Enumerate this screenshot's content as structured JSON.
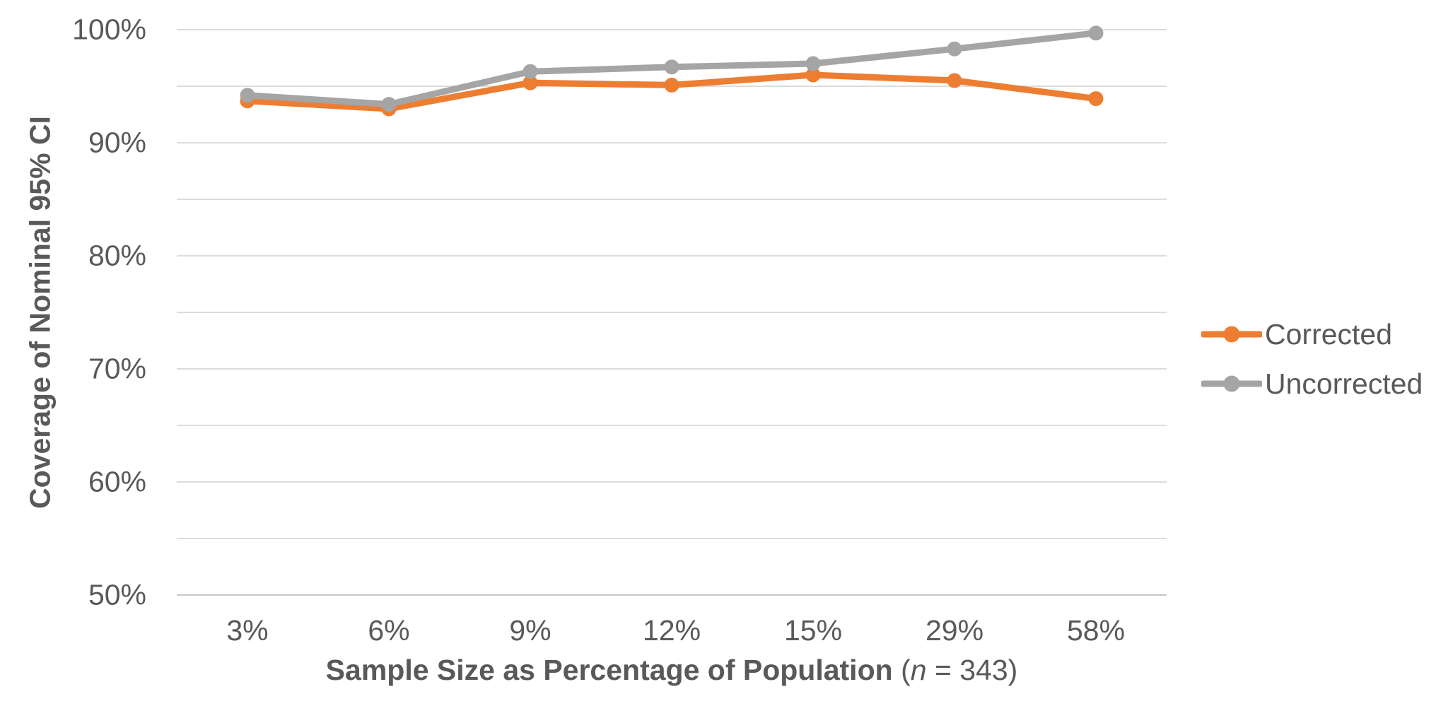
{
  "chart_data": {
    "type": "line",
    "title": "",
    "categories": [
      "3%",
      "6%",
      "9%",
      "12%",
      "15%",
      "29%",
      "58%"
    ],
    "series": [
      {
        "name": "Corrected",
        "color": "#ED7D31",
        "values": [
          93.7,
          93.0,
          95.3,
          95.1,
          96.0,
          95.5,
          93.9
        ]
      },
      {
        "name": "Uncorrected",
        "color": "#A5A5A5",
        "values": [
          94.2,
          93.4,
          96.3,
          96.7,
          97.0,
          98.3,
          99.7
        ]
      }
    ],
    "xlabel": {
      "bold": "Sample Size as Percentage of Population",
      "paren_open": " (",
      "italic_n": "n",
      "paren_close": " = 343)"
    },
    "ylabel": "Coverage of Nominal 95% CI",
    "y_axis": {
      "min": 50,
      "max": 100,
      "gridline_step": 5,
      "label_values": [
        100,
        90,
        80,
        70,
        60,
        50
      ],
      "label_ticks": [
        "100%",
        "90%",
        "80%",
        "70%",
        "60%",
        "50%"
      ]
    },
    "grid": true,
    "legend_position": "right",
    "colors": {
      "text": "#595959",
      "gridline": "#DCDCDC",
      "axis_line": "#C6C6C6",
      "background": "#FFFFFF"
    }
  }
}
